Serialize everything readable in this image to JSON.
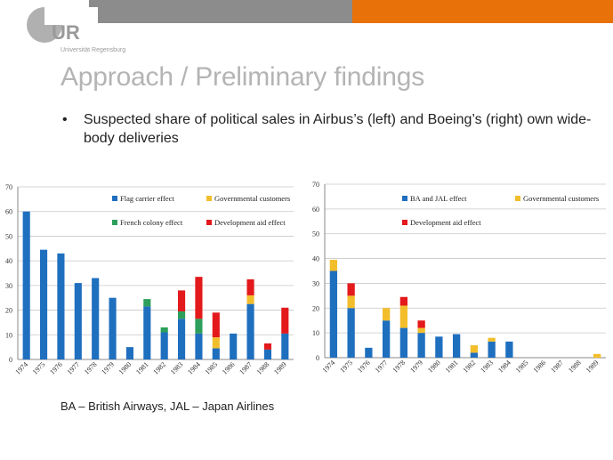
{
  "header": {
    "logo_letters": "UR",
    "university": "Universität Regensburg",
    "title": "Approach / Preliminary findings",
    "colors": {
      "gray": "#8c8c8c",
      "orange": "#e8710a"
    }
  },
  "bullet": {
    "marker": "•",
    "text": "Suspected share of political sales in Airbus’s (left) and Boeing’s (right) own wide-body deliveries"
  },
  "footnote": "BA – British Airways, JAL – Japan Airlines",
  "chart_data": [
    {
      "type": "bar",
      "stacked": true,
      "categories": [
        "1974",
        "1975",
        "1976",
        "1977",
        "1978",
        "1979",
        "1980",
        "1981",
        "1982",
        "1983",
        "1984",
        "1985",
        "1986",
        "1987",
        "1988",
        "1989"
      ],
      "ylim": [
        0,
        70
      ],
      "yticks": [
        0,
        10,
        20,
        30,
        40,
        50,
        60,
        70
      ],
      "grid": true,
      "legend_placement": "top-right",
      "series": [
        {
          "name": "Flag carrier effect",
          "color": "#1f6fbf",
          "values": [
            60,
            44.5,
            43,
            31,
            33,
            25,
            5,
            21.5,
            11,
            16.5,
            10.5,
            4.5,
            10.5,
            22.5,
            4,
            10.5
          ]
        },
        {
          "name": "French colony effect",
          "color": "#2ca05a",
          "values": [
            0,
            0,
            0,
            0,
            0,
            0,
            0,
            3,
            2,
            3,
            6,
            0,
            0,
            0,
            0,
            0
          ]
        },
        {
          "name": "Governmental customers",
          "color": "#f2be2c",
          "values": [
            0,
            0,
            0,
            0,
            0,
            0,
            0,
            0,
            0,
            0,
            0,
            4.5,
            0,
            3.5,
            0,
            0
          ]
        },
        {
          "name": "Development aid effect",
          "color": "#e3191c",
          "values": [
            0,
            0,
            0,
            0,
            0,
            0,
            0,
            0,
            0,
            8.5,
            17,
            10,
            0,
            6.5,
            2.5,
            10.5
          ]
        }
      ],
      "legend_order": [
        0,
        2,
        1,
        3
      ]
    },
    {
      "type": "bar",
      "stacked": true,
      "categories": [
        "1974",
        "1975",
        "1976",
        "1977",
        "1978",
        "1979",
        "1980",
        "1981",
        "1982",
        "1983",
        "1984",
        "1985",
        "1986",
        "1987",
        "1988",
        "1989"
      ],
      "ylim": [
        0,
        70
      ],
      "yticks": [
        0,
        10,
        20,
        30,
        40,
        50,
        60,
        70
      ],
      "grid": true,
      "legend_placement": "top-right",
      "series": [
        {
          "name": "BA and JAL effect",
          "color": "#1f6fbf",
          "values": [
            35,
            20,
            4,
            15,
            12,
            10,
            8.5,
            9.5,
            2,
            6.5,
            6.5,
            0,
            0,
            0,
            0,
            0
          ]
        },
        {
          "name": "Governmental customers",
          "color": "#f2be2c",
          "values": [
            4.5,
            5,
            0,
            5,
            9,
            2,
            0,
            0,
            3,
            1.5,
            0,
            0,
            0,
            0,
            0,
            1.5
          ]
        },
        {
          "name": "Development aid effect",
          "color": "#e3191c",
          "values": [
            0,
            5,
            0,
            0,
            3.5,
            3,
            0,
            0,
            0,
            0,
            0,
            0,
            0,
            0,
            0,
            0
          ]
        }
      ],
      "legend_order": [
        0,
        1,
        2
      ]
    }
  ]
}
